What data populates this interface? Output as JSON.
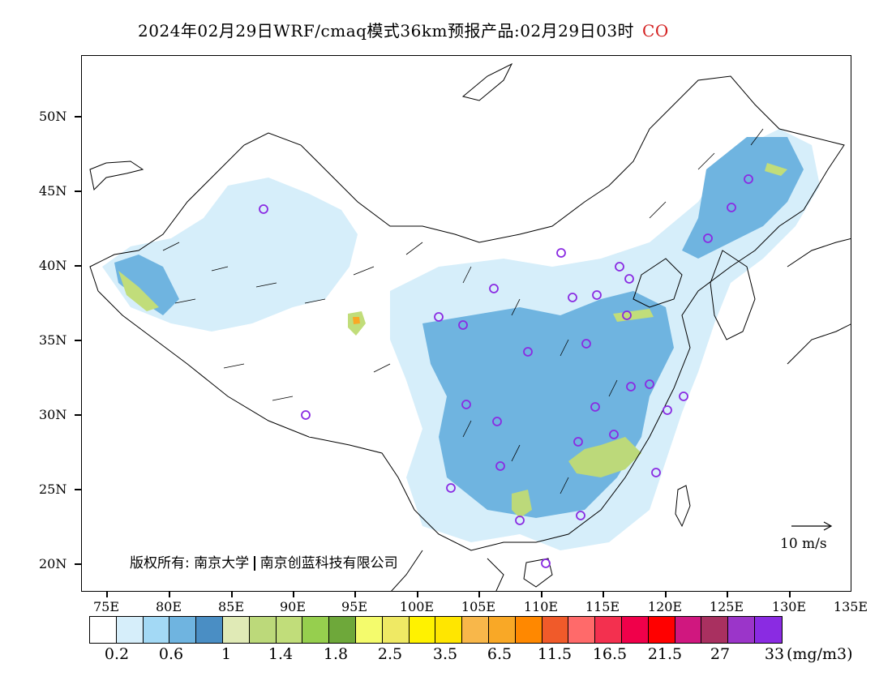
{
  "title": {
    "text": "2024年02月29日WRF/cmaq模式36km预报产品:02月29日03时",
    "species": "CO",
    "species_color": "#d42020"
  },
  "axes": {
    "lat_labels": [
      "50N",
      "45N",
      "40N",
      "35N",
      "30N",
      "25N",
      "20N"
    ],
    "lon_labels": [
      "75E",
      "80E",
      "85E",
      "90E",
      "95E",
      "100E",
      "105E",
      "110E",
      "115E",
      "120E",
      "125E",
      "130E",
      "135E"
    ]
  },
  "copyright": {
    "prefix": "版权所有:",
    "org1": "南京大学",
    "org2": "南京创蓝科技有限公司"
  },
  "wind_scale": {
    "label": "10 m/s"
  },
  "legend": {
    "colors": [
      "#ffffff",
      "#d6eefa",
      "#a3d9f5",
      "#6fb4e0",
      "#4a8ec4",
      "#e0eab6",
      "#bcd97a",
      "#c1dd7a",
      "#96cf4e",
      "#6ea83a",
      "#f4fb6c",
      "#efe964",
      "#fff200",
      "#ffe600",
      "#f8b74a",
      "#f9a826",
      "#ff8800",
      "#f05a2a",
      "#ff6a6a",
      "#f3304f",
      "#f0004a",
      "#ff0000",
      "#d0177f",
      "#a93060",
      "#9b35c9",
      "#8a2be2"
    ],
    "labels": [
      "0.2",
      "0.6",
      "1",
      "1.4",
      "1.8",
      "2.5",
      "3.5",
      "6.5",
      "11.5",
      "16.5",
      "21.5",
      "27",
      "33"
    ],
    "unit": "(mg/m3)"
  },
  "map": {
    "land_color": "#ffffff",
    "boundary_color": "#000000",
    "station_marker_color": "#8a2be2"
  }
}
